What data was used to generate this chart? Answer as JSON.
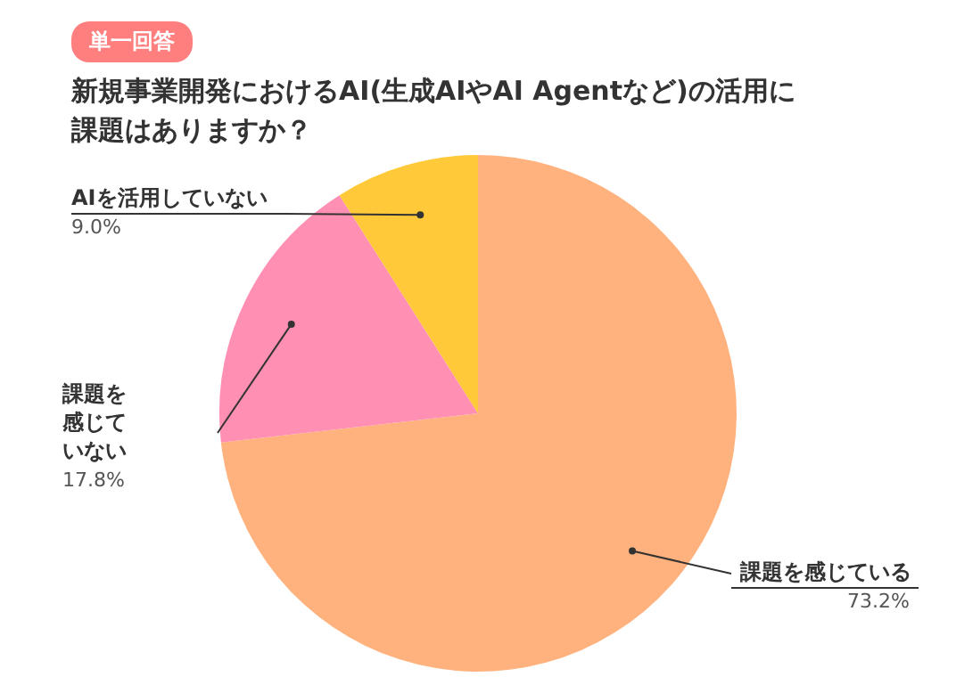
{
  "chart_data": {
    "type": "pie",
    "title": "新規事業開発におけるAI(生成AIやAI Agentなど)の活用に課題はありますか？",
    "annotations": [
      "単一回答"
    ],
    "categories": [
      "課題を感じている",
      "課題を感じていない",
      "AIを活用していない"
    ],
    "values": [
      73.2,
      17.8,
      9.0
    ],
    "colors": [
      "#ffb27d",
      "#ff8fb3",
      "#ffc93a"
    ],
    "value_labels": [
      "73.2%",
      "17.8%",
      "9.0%"
    ],
    "legend": false
  }
}
